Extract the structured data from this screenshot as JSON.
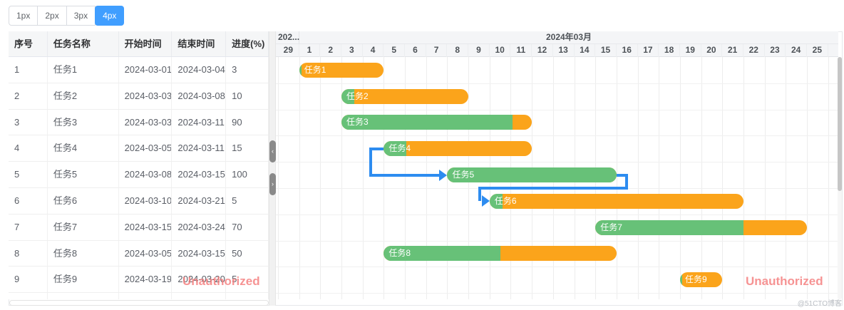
{
  "toolbar": {
    "buttons": [
      {
        "label": "1px",
        "active": false
      },
      {
        "label": "2px",
        "active": false
      },
      {
        "label": "3px",
        "active": false
      },
      {
        "label": "4px",
        "active": true
      }
    ]
  },
  "table": {
    "columns": [
      "序号",
      "任务名称",
      "开始时间",
      "结束时间",
      "进度(%)"
    ]
  },
  "chart_data": {
    "type": "gantt",
    "month_labels": {
      "left_truncated": "202...",
      "main": "2024年03月"
    },
    "day_labels": [
      "29",
      "1",
      "2",
      "3",
      "4",
      "5",
      "6",
      "7",
      "8",
      "9",
      "10",
      "11",
      "12",
      "13",
      "14",
      "15",
      "16",
      "17",
      "18",
      "19",
      "20",
      "21",
      "22",
      "23",
      "24",
      "25"
    ],
    "tasks": [
      {
        "id": "1",
        "name": "任务1",
        "start": "2024-03-01",
        "end": "2024-03-04",
        "progress": 3
      },
      {
        "id": "2",
        "name": "任务2",
        "start": "2024-03-03",
        "end": "2024-03-08",
        "progress": 10
      },
      {
        "id": "3",
        "name": "任务3",
        "start": "2024-03-03",
        "end": "2024-03-11",
        "progress": 90
      },
      {
        "id": "4",
        "name": "任务4",
        "start": "2024-03-05",
        "end": "2024-03-11",
        "progress": 15
      },
      {
        "id": "5",
        "name": "任务5",
        "start": "2024-03-08",
        "end": "2024-03-15",
        "progress": 100
      },
      {
        "id": "6",
        "name": "任务6",
        "start": "2024-03-10",
        "end": "2024-03-21",
        "progress": 5
      },
      {
        "id": "7",
        "name": "任务7",
        "start": "2024-03-15",
        "end": "2024-03-24",
        "progress": 70
      },
      {
        "id": "8",
        "name": "任务8",
        "start": "2024-03-05",
        "end": "2024-03-15",
        "progress": 50
      },
      {
        "id": "9",
        "name": "任务9",
        "start": "2024-03-19",
        "end": "2024-03-20",
        "progress": 5
      }
    ],
    "dependencies": [
      {
        "from": "任务4",
        "to": "任务5",
        "connector": "start-to-start"
      },
      {
        "from": "任务5",
        "to": "任务6",
        "connector": "end-to-start"
      }
    ],
    "colors": {
      "bar_progress": "#67c178",
      "bar_remaining": "#fba41b",
      "dependency_line": "#2d8cf0",
      "active_button": "#409eff"
    }
  },
  "splitter": {
    "collapse_left_icon": "‹",
    "collapse_right_icon": "›"
  },
  "watermarks": {
    "unauthorized": "Unauthorized",
    "brand": "@51CTO博客"
  }
}
